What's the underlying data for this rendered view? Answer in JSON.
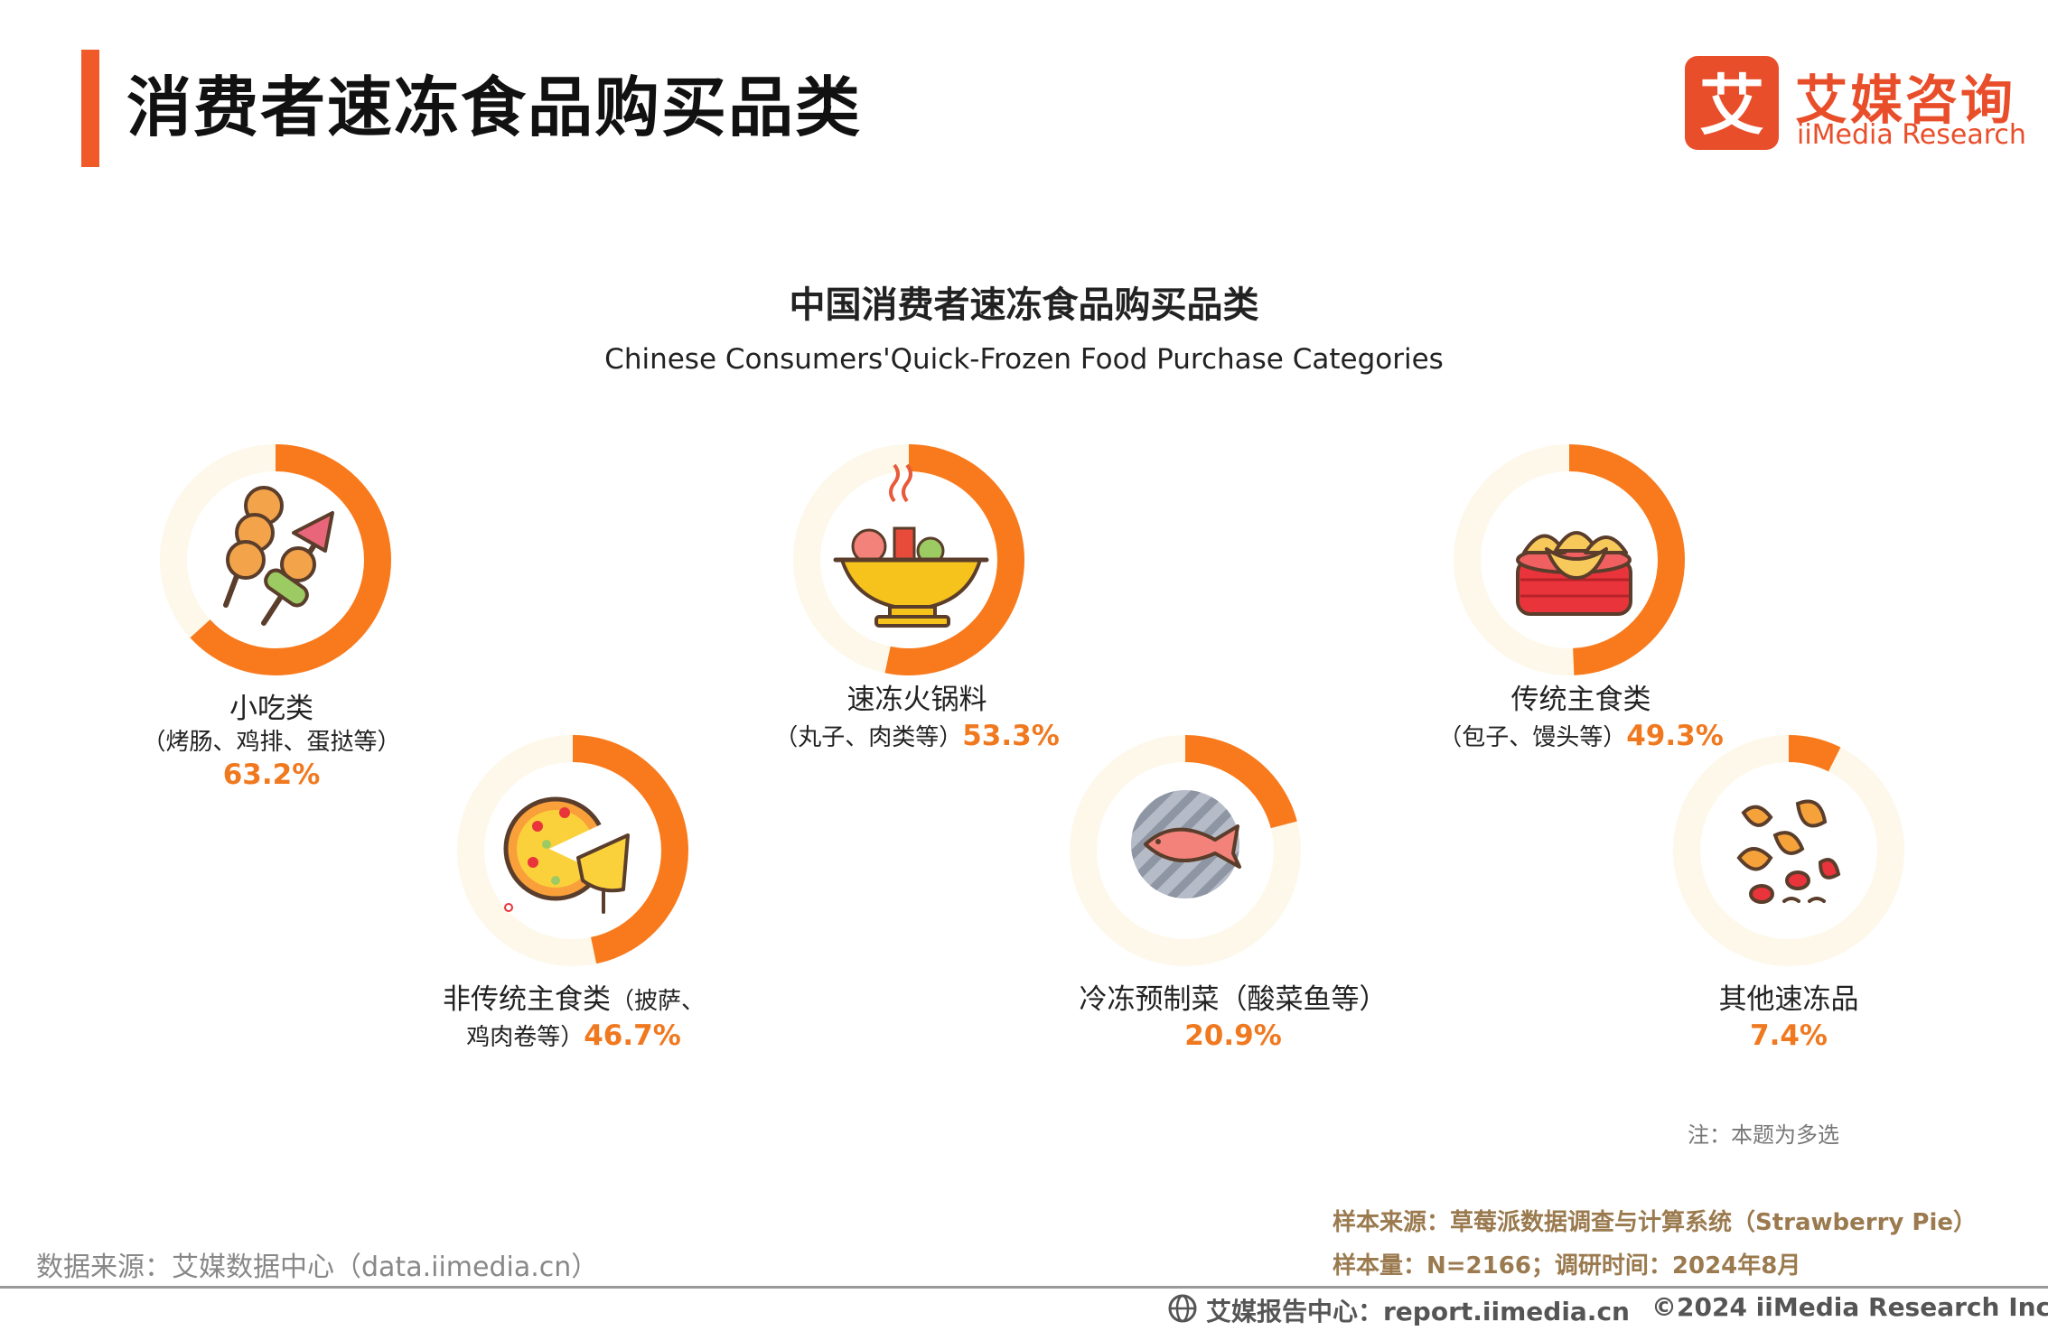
{
  "header": {
    "title": "消费者速冻食品购买品类"
  },
  "logo": {
    "cn": "艾媒咨询",
    "en": "iiMedia Research",
    "mark_char": "艾"
  },
  "chart_data": {
    "type": "donut",
    "title": "中国消费者速冻食品购买品类",
    "subtitle": "Chinese Consumers'Quick-Frozen Food Purchase Categories",
    "unit": "%",
    "colors": {
      "filled": "#f87a1d",
      "track": "#fdf8ea"
    },
    "items": [
      {
        "category": "小吃类",
        "examples": "（烤肠、鸡排、蛋挞等）",
        "value": 63.2,
        "value_label": "63.2%",
        "icon": "skewer-icon"
      },
      {
        "category": "速冻火锅料",
        "examples": "（丸子、肉类等）",
        "value": 53.3,
        "value_label": "53.3%",
        "icon": "hotpot-icon"
      },
      {
        "category": "传统主食类",
        "examples": "（包子、馒头等）",
        "value": 49.3,
        "value_label": "49.3%",
        "icon": "steamed-buns-icon"
      },
      {
        "category": "非传统主食类",
        "examples": "（披萨、鸡肉卷等）",
        "value": 46.7,
        "value_label": "46.7%",
        "icon": "pizza-icon"
      },
      {
        "category": "冷冻预制菜",
        "examples": "（酸菜鱼等）",
        "value": 20.9,
        "value_label": "20.9%",
        "icon": "grilled-fish-icon"
      },
      {
        "category": "其他速冻品",
        "examples": "",
        "value": 7.4,
        "value_label": "7.4%",
        "icon": "snacks-icon"
      }
    ]
  },
  "labels": {
    "l0": {
      "line1": "小吃类",
      "line2": "（烤肠、鸡排、蛋挞等）",
      "pct": "63.2%"
    },
    "l1": {
      "line1": "速冻火锅料",
      "line2": "（丸子、肉类等）",
      "pct": "53.3%"
    },
    "l2": {
      "line1": "传统主食类",
      "line2": "（包子、馒头等）",
      "pct": "49.3%"
    },
    "l3": {
      "line1a": "非传统主食类",
      "line1b": "（披萨、",
      "line2": "鸡肉卷等）",
      "pct": "46.7%"
    },
    "l4": {
      "line1": "冷冻预制菜（酸菜鱼等）",
      "pct": "20.9%"
    },
    "l5": {
      "line1": "其他速冻品",
      "pct": "7.4%"
    }
  },
  "note": "注：本题为多选",
  "sample_source": "样本来源：草莓派数据调查与计算系统（Strawberry Pie）",
  "sample_size": "样本量：N=2166；调研时间：2024年8月",
  "data_source": "数据来源：艾媒数据中心（data.iimedia.cn）",
  "footer": {
    "report_site": "艾媒报告中心：report.iimedia.cn",
    "copyright": "©2024  iiMedia Research  Inc"
  }
}
